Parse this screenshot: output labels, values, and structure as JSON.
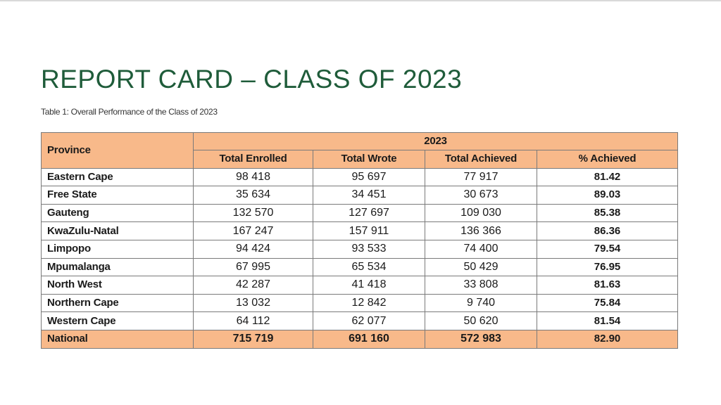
{
  "title": "REPORT CARD – CLASS OF 2023",
  "caption": "Table 1: Overall Performance of the Class of 2023",
  "colors": {
    "title_green": "#1f5c3a",
    "header_fill": "#f8b98a",
    "border": "#7a7a7a"
  },
  "table": {
    "province_header": "Province",
    "year_header": "2023",
    "columns": [
      "Total Enrolled",
      "Total Wrote",
      "Total Achieved",
      "% Achieved"
    ],
    "rows": [
      {
        "province": "Eastern Cape",
        "enrolled": "98 418",
        "wrote": "95 697",
        "achieved": "77 917",
        "pct": "81.42"
      },
      {
        "province": "Free State",
        "enrolled": "35 634",
        "wrote": "34 451",
        "achieved": "30 673",
        "pct": "89.03"
      },
      {
        "province": "Gauteng",
        "enrolled": "132 570",
        "wrote": "127 697",
        "achieved": "109 030",
        "pct": "85.38"
      },
      {
        "province": "KwaZulu-Natal",
        "enrolled": "167 247",
        "wrote": "157 911",
        "achieved": "136 366",
        "pct": "86.36"
      },
      {
        "province": "Limpopo",
        "enrolled": "94 424",
        "wrote": "93 533",
        "achieved": "74 400",
        "pct": "79.54"
      },
      {
        "province": "Mpumalanga",
        "enrolled": "67 995",
        "wrote": "65 534",
        "achieved": "50 429",
        "pct": "76.95"
      },
      {
        "province": "North West",
        "enrolled": "42 287",
        "wrote": "41 418",
        "achieved": "33 808",
        "pct": "81.63"
      },
      {
        "province": "Northern Cape",
        "enrolled": "13 032",
        "wrote": "12 842",
        "achieved": "9 740",
        "pct": "75.84"
      },
      {
        "province": "Western Cape",
        "enrolled": "64 112",
        "wrote": "62 077",
        "achieved": "50 620",
        "pct": "81.54"
      }
    ],
    "national": {
      "province": "National",
      "enrolled": "715 719",
      "wrote": "691 160",
      "achieved": "572 983",
      "pct": "82.90"
    }
  }
}
